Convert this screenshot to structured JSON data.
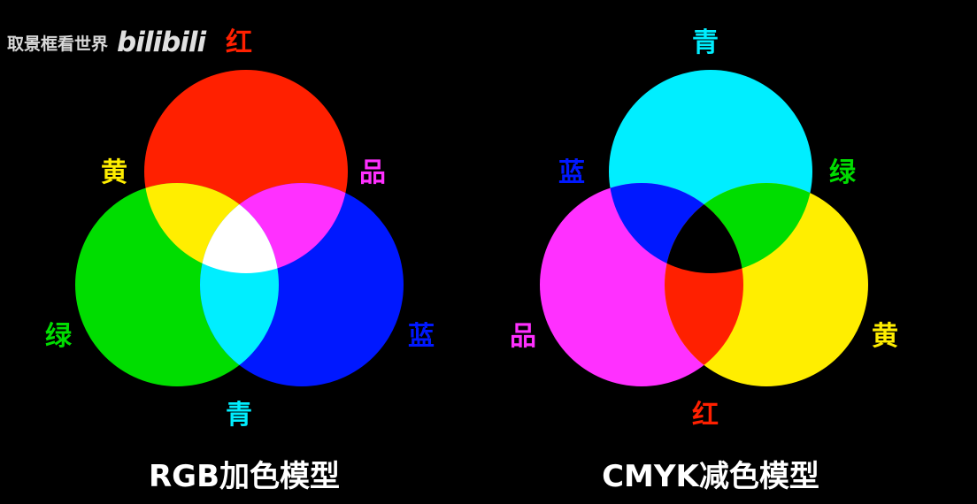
{
  "watermark": {
    "text": "取景框看世界",
    "logo": "bilibili"
  },
  "colors": {
    "red": "#FF2000",
    "green": "#00DD00",
    "blue": "#0018FF",
    "yellow": "#FFEE00",
    "magenta": "#FF30FF",
    "cyan": "#00EEFF",
    "white": "#FFFFFF",
    "black": "#000000",
    "background": "#000000"
  },
  "rgb": {
    "caption": "RGB加色模型",
    "labels": {
      "red": "红",
      "yellow": "黄",
      "magenta": "品",
      "green": "绿",
      "blue": "蓝",
      "cyan": "青"
    }
  },
  "cmyk": {
    "caption": "CMYK减色模型",
    "labels": {
      "cyan": "青",
      "blue": "蓝",
      "green": "绿",
      "magenta": "品",
      "yellow": "黄",
      "red": "红"
    }
  }
}
